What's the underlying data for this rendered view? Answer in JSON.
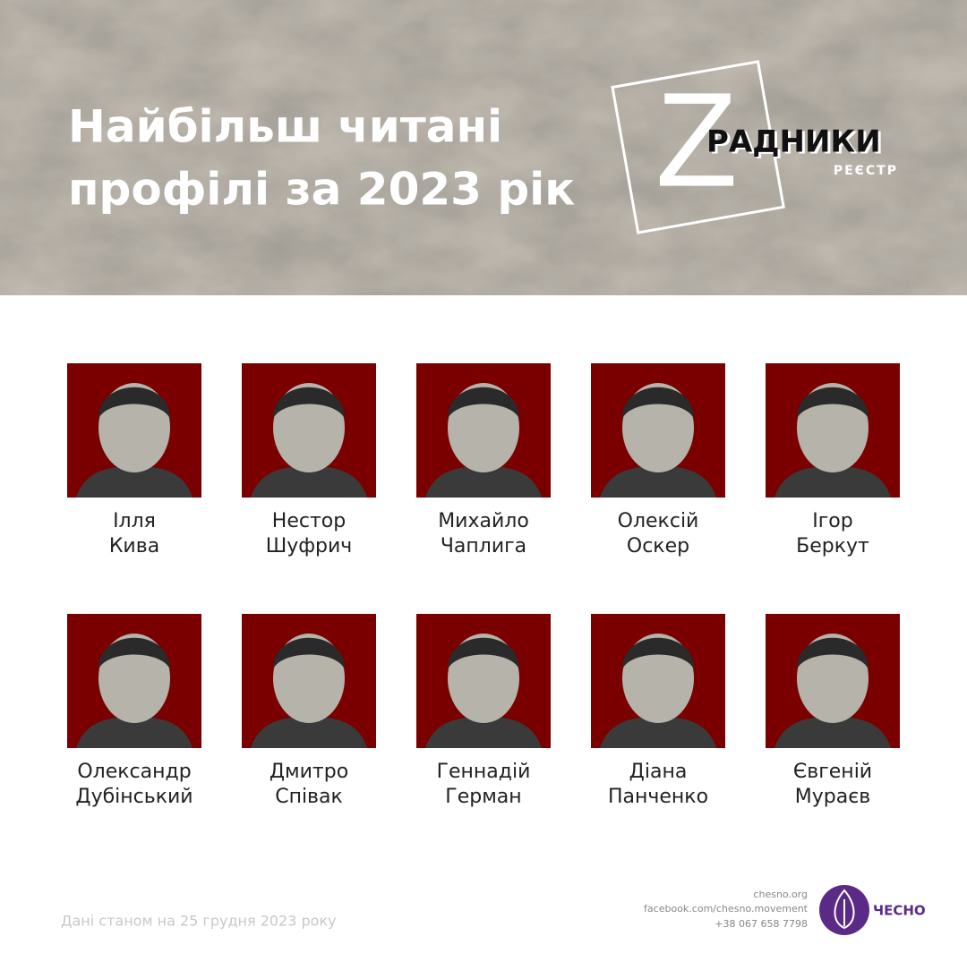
{
  "header": {
    "title": [
      "Найбільш читані",
      "профілі за 2023 рік"
    ],
    "logo": {
      "letter": "Z",
      "word": "РАДНИКИ",
      "subtitle": "РЕЄСТР"
    }
  },
  "profiles": [
    {
      "first": "Ілля",
      "last": "Кива"
    },
    {
      "first": "Нестор",
      "last": "Шуфрич"
    },
    {
      "first": "Михайло",
      "last": "Чаплига"
    },
    {
      "first": "Олексій",
      "last": "Оскер"
    },
    {
      "first": "Ігор",
      "last": "Беркут"
    },
    {
      "first": "Олександр",
      "last": "Дубінський"
    },
    {
      "first": "Дмитро",
      "last": "Співак"
    },
    {
      "first": "Геннадій",
      "last": "Герман"
    },
    {
      "first": "Діана",
      "last": "Панченко"
    },
    {
      "first": "Євгеній",
      "last": "Мураєв"
    }
  ],
  "footer": {
    "note": "Дані станом на 25 грудня 2023 року",
    "contacts": [
      "chesno.org",
      "facebook.com/chesno.movement",
      "+38 067 658 7798"
    ],
    "brand": "ЧЕСНО"
  }
}
